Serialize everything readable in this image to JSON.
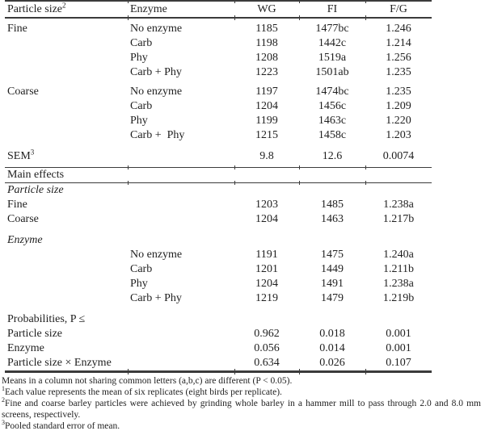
{
  "colors": {
    "text": "#1f1f1f",
    "rule": "#3b3b3b",
    "background": "#ffffff"
  },
  "table": {
    "rows": [
      {
        "kind": "rule",
        "w": 2
      },
      {
        "kind": "header",
        "cells": [
          {
            "text": "Particle size",
            "sup": "2"
          },
          {
            "text": "Enzyme"
          },
          {
            "text": "WG"
          },
          {
            "text": "FI"
          },
          {
            "text": "F/G"
          }
        ]
      },
      {
        "kind": "rule",
        "w": 2
      },
      {
        "kind": "gap",
        "h": 4
      },
      {
        "kind": "data",
        "cells": [
          "Fine",
          "No enzyme",
          "1185",
          "1477bc",
          "1.246"
        ]
      },
      {
        "kind": "data",
        "cells": [
          "",
          "Carb",
          "1198",
          "1442c",
          "1.214"
        ]
      },
      {
        "kind": "data",
        "cells": [
          "",
          "Phy",
          "1208",
          "1519a",
          "1.256"
        ]
      },
      {
        "kind": "data",
        "cells": [
          "",
          "Carb + Phy",
          "1223",
          "1501ab",
          "1.235"
        ]
      },
      {
        "kind": "gap",
        "h": 6
      },
      {
        "kind": "data",
        "cells": [
          "Coarse",
          "No enzyme",
          "1197",
          "1474bc",
          "1.235"
        ]
      },
      {
        "kind": "data",
        "cells": [
          "",
          "Carb",
          "1204",
          "1456c",
          "1.209"
        ]
      },
      {
        "kind": "data",
        "cells": [
          "",
          "Phy",
          "1199",
          "1463c",
          "1.220"
        ]
      },
      {
        "kind": "data",
        "cells": [
          "",
          "Carb +  Phy",
          "1215",
          "1458c",
          "1.203"
        ]
      },
      {
        "kind": "gap",
        "h": 8
      },
      {
        "kind": "data",
        "cells": [
          {
            "text": "SEM",
            "sup": "3"
          },
          "",
          "9.8",
          "12.6",
          "0.0074"
        ]
      },
      {
        "kind": "gap",
        "h": 4
      },
      {
        "kind": "rule",
        "w": 1
      },
      {
        "kind": "span",
        "text": "Main effects"
      },
      {
        "kind": "rule",
        "w": 1
      },
      {
        "kind": "span",
        "text": "Particle size",
        "italic": true
      },
      {
        "kind": "data",
        "cells": [
          "Fine",
          "",
          "1203",
          "1485",
          "1.238a"
        ]
      },
      {
        "kind": "data",
        "cells": [
          "Coarse",
          "",
          "1204",
          "1463",
          "1.217b"
        ]
      },
      {
        "kind": "gap",
        "h": 8
      },
      {
        "kind": "span",
        "text": "Enzyme",
        "italic": true
      },
      {
        "kind": "data",
        "cells": [
          "",
          "No enzyme",
          "1191",
          "1475",
          "1.240a"
        ]
      },
      {
        "kind": "data",
        "cells": [
          "",
          "Carb",
          "1201",
          "1449",
          "1.211b"
        ]
      },
      {
        "kind": "data",
        "cells": [
          "",
          "Phy",
          "1204",
          "1491",
          "1.238a"
        ]
      },
      {
        "kind": "data",
        "cells": [
          "",
          "Carb + Phy",
          "1219",
          "1479",
          "1.219b"
        ]
      },
      {
        "kind": "gap",
        "h": 8
      },
      {
        "kind": "span",
        "text": "Probabilities, P ≤"
      },
      {
        "kind": "data",
        "cells": [
          "Particle size",
          "",
          "0.962",
          "0.018",
          "0.001"
        ]
      },
      {
        "kind": "data",
        "cells": [
          "Enzyme",
          "",
          "0.056",
          "0.014",
          "0.001"
        ]
      },
      {
        "kind": "data",
        "cells": [
          "Particle size × Enzyme",
          "",
          "0.634",
          "0.026",
          "0.107"
        ]
      },
      {
        "kind": "rule",
        "w": 3
      }
    ]
  },
  "footnotes": [
    {
      "sup": "",
      "text": "Means in a column not sharing common letters (a,b,c) are different (P < 0.05)."
    },
    {
      "sup": "1",
      "text": "Each value represents the mean of six replicates (eight birds per replicate)."
    },
    {
      "sup": "2",
      "text": "Fine and coarse barley particles were achieved by grinding whole barley in a hammer mill to pass through 2.0 and 8.0 mm screens, respectively."
    },
    {
      "sup": "3",
      "text": "Pooled standard error of mean."
    }
  ]
}
